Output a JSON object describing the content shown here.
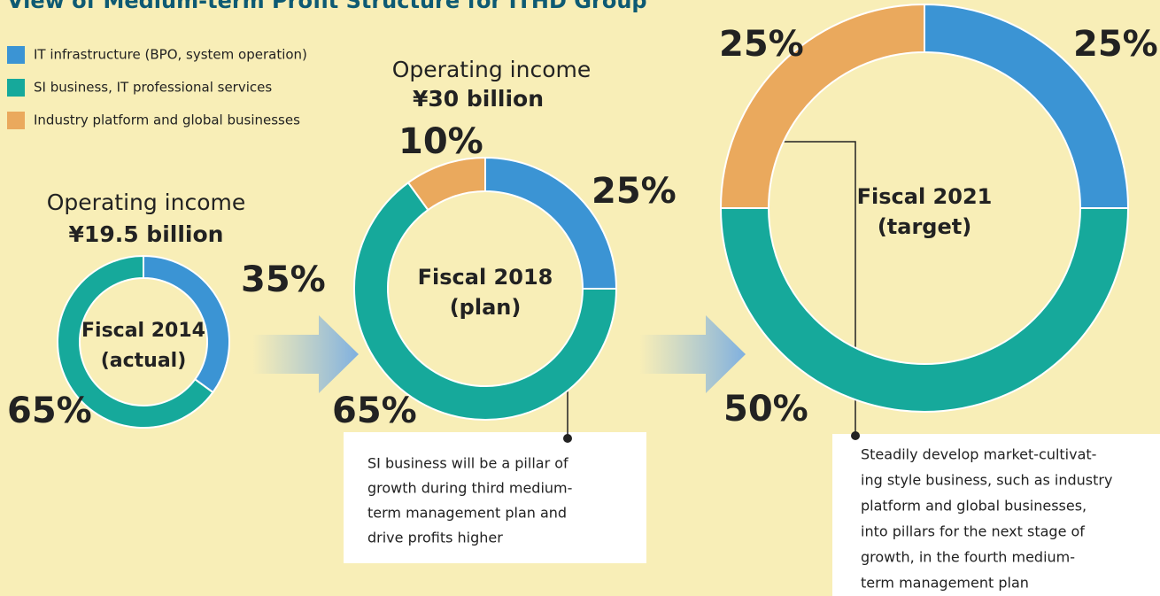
{
  "title": "View of Medium-term Profit Structure for ITHD Group",
  "legend": [
    {
      "name": "IT infrastructure (BPO, system operation)",
      "color": "#3b94d4"
    },
    {
      "name": "SI business, IT professional services",
      "color": "#16a99b"
    },
    {
      "name": "Industry platform and global businesses",
      "color": "#eaa95d"
    }
  ],
  "chart_data": [
    {
      "type": "donut",
      "heading": [
        "Operating income",
        "¥19.5 billion"
      ],
      "label": [
        "Fiscal 2014",
        "(actual)"
      ],
      "values": [
        35,
        65
      ],
      "value_labels": [
        "35%",
        "65%"
      ]
    },
    {
      "type": "donut",
      "heading": [
        "Operating income",
        "¥30 billion"
      ],
      "label": [
        "Fiscal 2018",
        "(plan)"
      ],
      "values": [
        25,
        65,
        10
      ],
      "value_labels": [
        "25%",
        "65%",
        "10%"
      ],
      "annotation": [
        "SI business will be a pillar of",
        "growth during third medium-",
        "term management plan and",
        "drive profits higher"
      ]
    },
    {
      "type": "donut",
      "label": [
        "Fiscal 2021",
        "(target)"
      ],
      "values": [
        25,
        50,
        25
      ],
      "value_labels": [
        "25%",
        "50%",
        "25%"
      ],
      "annotation": [
        "Steadily develop market-cultivat-",
        "ing style business, such as industry",
        "platform and global businesses,",
        "into pillars for the next stage of",
        "growth, in the fourth medium-",
        "term management plan"
      ]
    }
  ]
}
